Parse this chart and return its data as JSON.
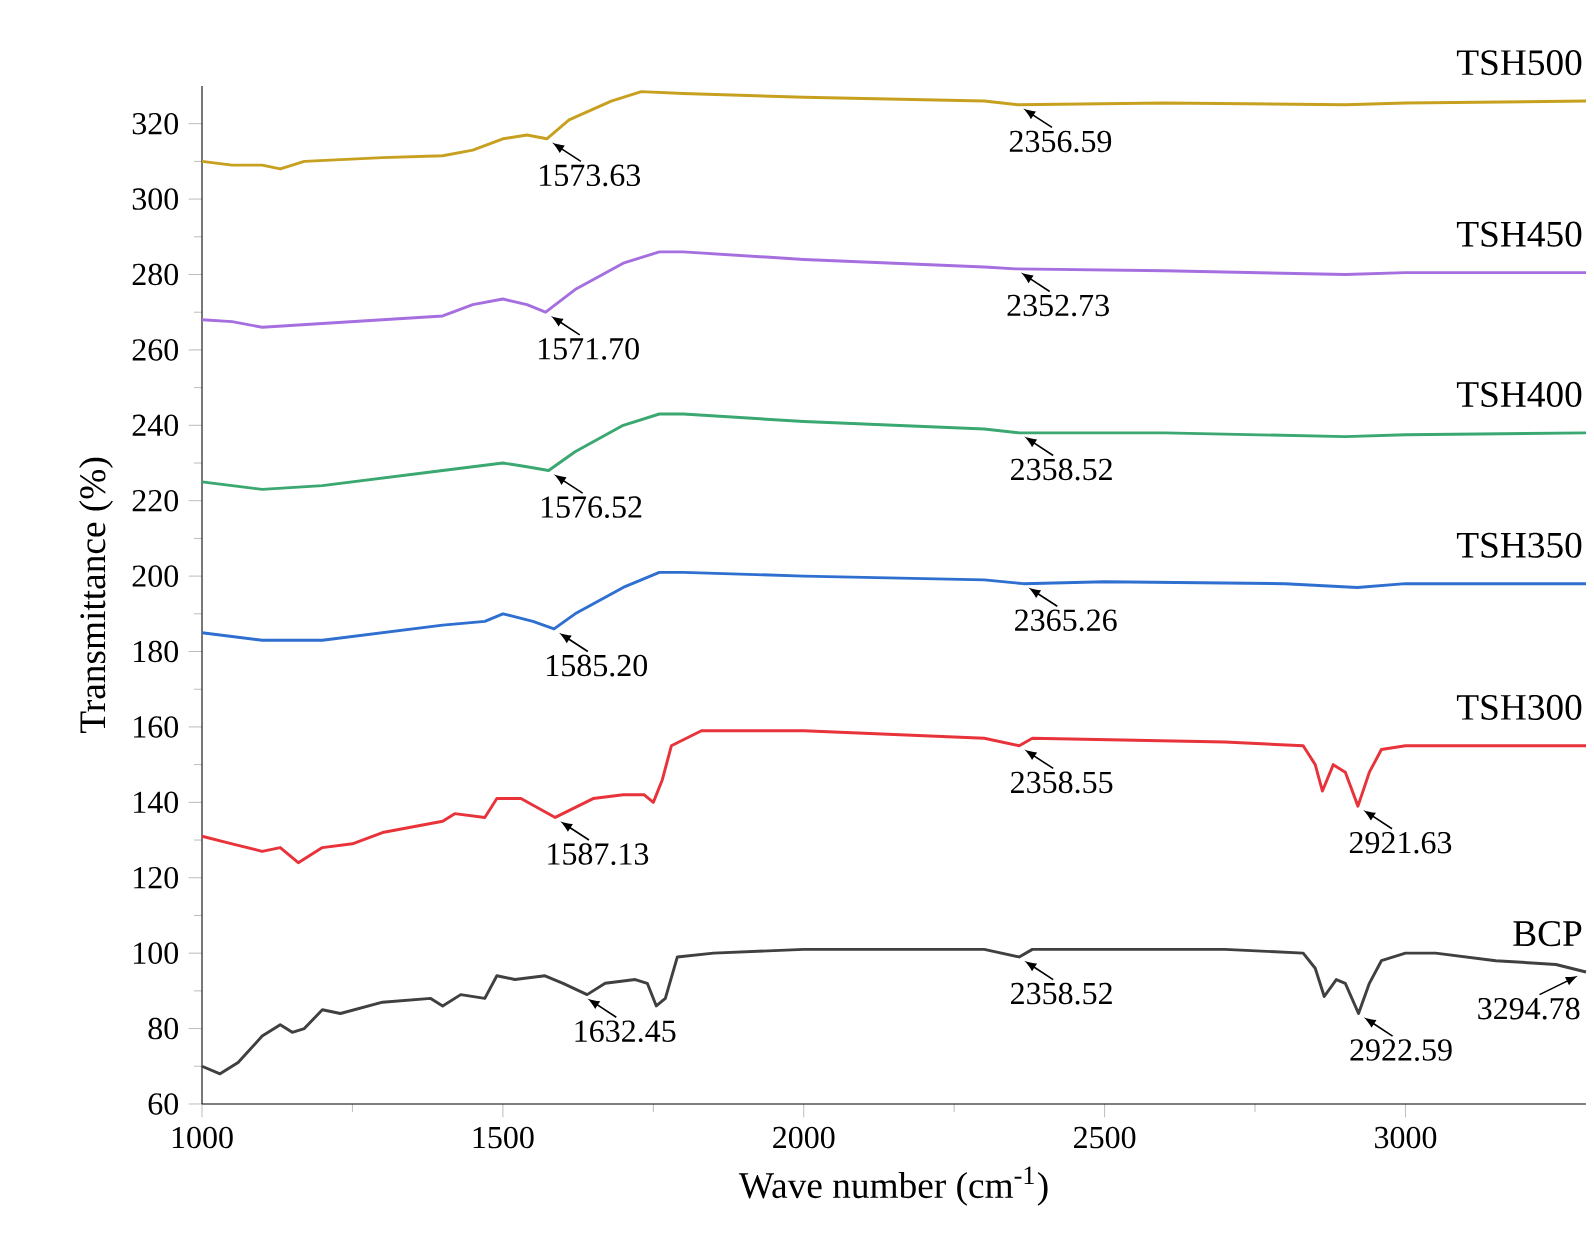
{
  "chart_data": {
    "type": "line",
    "xlabel": "Wave number (cm$^{-1}$)",
    "ylabel": "Transmittance (%)",
    "xlim": [
      1000,
      3300
    ],
    "ylim": [
      60,
      330
    ],
    "xticks": [
      1000,
      1500,
      2000,
      2500,
      3000
    ],
    "yticks": [
      60,
      80,
      100,
      120,
      140,
      160,
      180,
      200,
      220,
      240,
      260,
      280,
      300,
      320
    ],
    "legend": false,
    "series": [
      {
        "name": "BCP",
        "color": "#404040",
        "x": [
          1000,
          1030,
          1060,
          1100,
          1130,
          1150,
          1170,
          1200,
          1230,
          1300,
          1380,
          1400,
          1430,
          1470,
          1490,
          1520,
          1570,
          1600,
          1640,
          1670,
          1720,
          1740,
          1755,
          1770,
          1790,
          1850,
          2000,
          2300,
          2358,
          2380,
          2700,
          2830,
          2850,
          2865,
          2885,
          2900,
          2922,
          2940,
          2960,
          3000,
          3050,
          3150,
          3250,
          3300
        ],
        "values": [
          70,
          68,
          71,
          78,
          81,
          79,
          80,
          85,
          84,
          87,
          88,
          86,
          89,
          88,
          94,
          93,
          94,
          92,
          89,
          92,
          93,
          92,
          86,
          88,
          99,
          100,
          101,
          101,
          99,
          101,
          101,
          100,
          96,
          88.5,
          93,
          92,
          84,
          92,
          98,
          100,
          100,
          98,
          97,
          95
        ]
      },
      {
        "name": "TSH300",
        "color": "#e8333a",
        "x": [
          1000,
          1050,
          1100,
          1130,
          1160,
          1200,
          1250,
          1300,
          1400,
          1420,
          1470,
          1490,
          1530,
          1587,
          1650,
          1700,
          1735,
          1750,
          1765,
          1780,
          1830,
          2000,
          2300,
          2358,
          2380,
          2700,
          2830,
          2850,
          2862,
          2880,
          2900,
          2921,
          2940,
          2960,
          3000,
          3300
        ],
        "values": [
          131,
          129,
          127,
          128,
          124,
          128,
          129,
          132,
          135,
          137,
          136,
          141,
          141,
          136,
          141,
          142,
          142,
          140,
          146,
          155,
          159,
          159,
          157,
          155,
          157,
          156,
          155,
          150,
          143,
          150,
          148,
          139,
          148,
          154,
          155,
          155
        ]
      },
      {
        "name": "TSH350",
        "color": "#2f6fd0",
        "x": [
          1000,
          1100,
          1200,
          1300,
          1400,
          1470,
          1500,
          1550,
          1585,
          1620,
          1700,
          1760,
          1800,
          2000,
          2300,
          2365,
          2500,
          2800,
          2920,
          3000,
          3300
        ],
        "values": [
          185,
          183,
          183,
          185,
          187,
          188,
          190,
          188,
          186,
          190,
          197,
          201,
          201,
          200,
          199,
          198,
          198.5,
          198,
          197,
          198,
          198
        ]
      },
      {
        "name": "TSH400",
        "color": "#3aa870",
        "x": [
          1000,
          1050,
          1100,
          1200,
          1300,
          1400,
          1500,
          1540,
          1576,
          1620,
          1700,
          1760,
          1800,
          2000,
          2300,
          2358,
          2600,
          2900,
          3000,
          3300
        ],
        "values": [
          225,
          224,
          223,
          224,
          226,
          228,
          230,
          229,
          228,
          233,
          240,
          243,
          243,
          241,
          239,
          238,
          238,
          237,
          237.5,
          238
        ]
      },
      {
        "name": "TSH450",
        "color": "#a66fe0",
        "x": [
          1000,
          1050,
          1100,
          1200,
          1300,
          1400,
          1450,
          1500,
          1540,
          1571,
          1620,
          1700,
          1760,
          1800,
          2000,
          2300,
          2352,
          2600,
          2900,
          3000,
          3300
        ],
        "values": [
          268,
          267.5,
          266,
          267,
          268,
          269,
          272,
          273.5,
          272,
          270,
          276,
          283,
          286,
          286,
          284,
          282,
          281.5,
          281,
          280,
          280.5,
          280.5
        ]
      },
      {
        "name": "TSH500",
        "color": "#c8a020",
        "x": [
          1000,
          1050,
          1100,
          1130,
          1170,
          1300,
          1400,
          1450,
          1500,
          1540,
          1573,
          1610,
          1680,
          1730,
          1800,
          2000,
          2300,
          2356,
          2600,
          2900,
          3000,
          3300
        ],
        "values": [
          310,
          309,
          309,
          308,
          310,
          311,
          311.5,
          313,
          316,
          317,
          316,
          321,
          326,
          328.5,
          328,
          327,
          326,
          325,
          325.5,
          325,
          325.5,
          326
        ]
      }
    ],
    "annotations": [
      {
        "text": "1573.63",
        "x": 1573.63,
        "y": 316
      },
      {
        "text": "2356.59",
        "x": 2356.59,
        "y": 325
      },
      {
        "text": "1571.70",
        "x": 1571.7,
        "y": 270
      },
      {
        "text": "2352.73",
        "x": 2352.73,
        "y": 281.5
      },
      {
        "text": "1576.52",
        "x": 1576.52,
        "y": 228
      },
      {
        "text": "2358.52",
        "x": 2358.52,
        "y": 238
      },
      {
        "text": "1585.20",
        "x": 1585.2,
        "y": 186
      },
      {
        "text": "2365.26",
        "x": 2365.26,
        "y": 198
      },
      {
        "text": "1587.13",
        "x": 1587.13,
        "y": 136
      },
      {
        "text": "2358.55",
        "x": 2358.55,
        "y": 155
      },
      {
        "text": "2921.63",
        "x": 2921.63,
        "y": 139
      },
      {
        "text": "1632.45",
        "x": 1632.45,
        "y": 89
      },
      {
        "text": "2358.52",
        "x": 2358.52,
        "y": 99
      },
      {
        "text": "2922.59",
        "x": 2922.59,
        "y": 84
      },
      {
        "text": "3294.78",
        "x": 3294.78,
        "y": 95
      }
    ]
  }
}
